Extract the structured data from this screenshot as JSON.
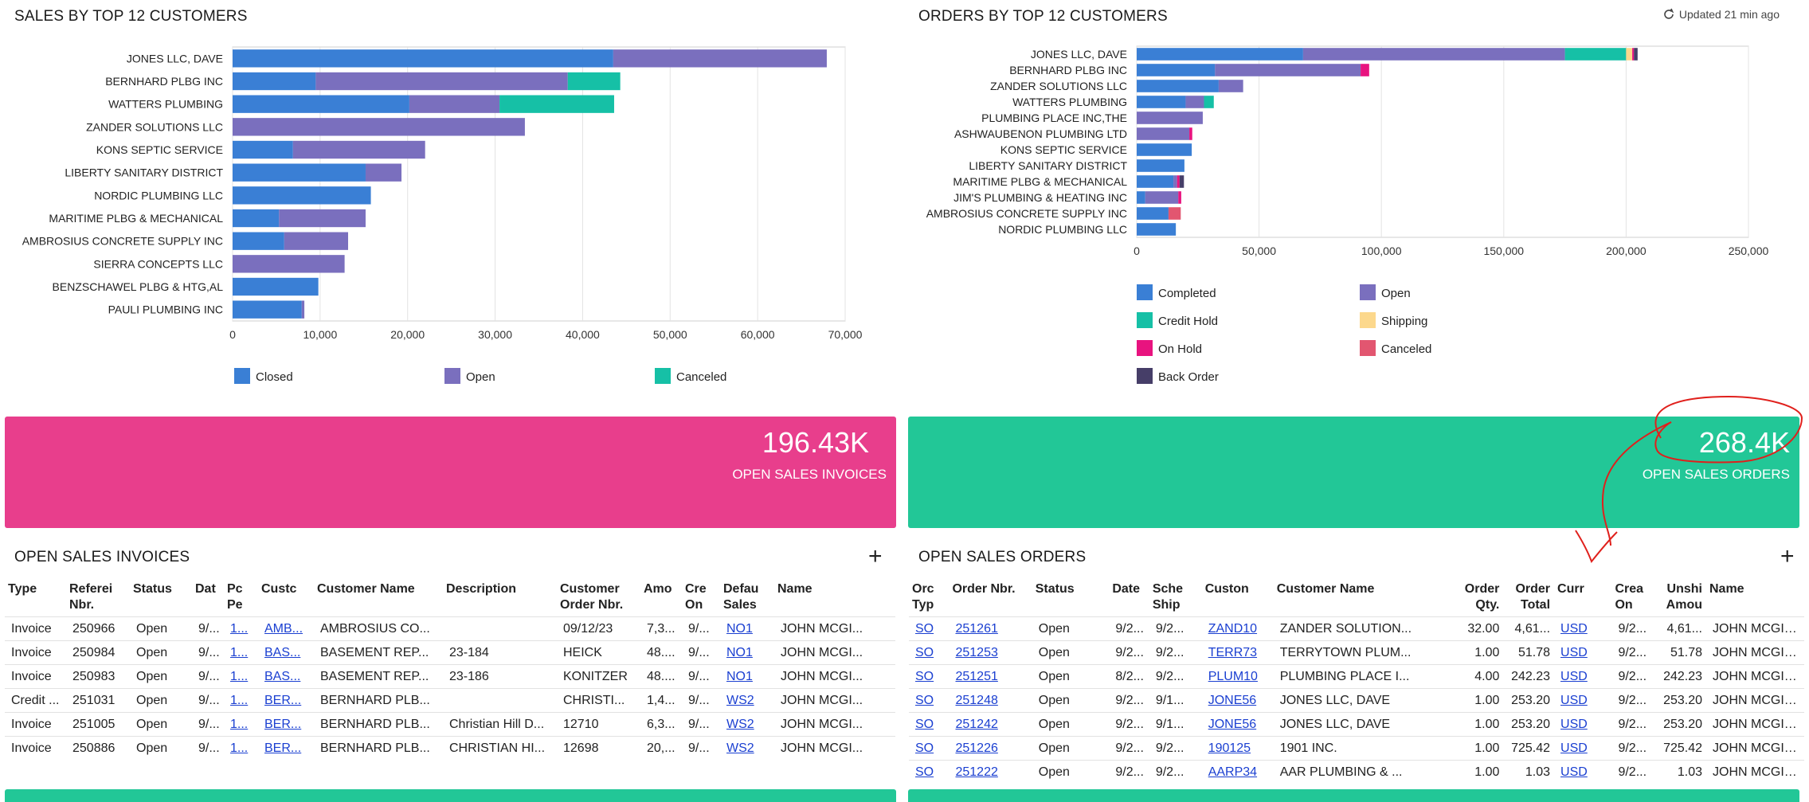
{
  "colors": {
    "closed": "#3a7fd5",
    "open": "#7a6fbe",
    "canceled_teal": "#16c0a6",
    "completed": "#3a7fd5",
    "credit_hold": "#16c0a6",
    "shipping": "#fcd88c",
    "on_hold": "#e8137f",
    "canceled_red": "#e25670",
    "back_order": "#463e68",
    "kpi_pink": "#e83e8c",
    "kpi_green": "#22c797",
    "link": "#1a3fd1",
    "annotation": "#e0201c"
  },
  "sales_chart": {
    "title": "SALES BY TOP 12 CUSTOMERS",
    "chart_data": {
      "type": "bar",
      "orientation": "horizontal",
      "stacked": true,
      "categories": [
        "JONES LLC, DAVE",
        "BERNHARD PLBG INC",
        "WATTERS PLUMBING",
        "ZANDER SOLUTIONS LLC",
        "KONS SEPTIC SERVICE",
        "LIBERTY SANITARY DISTRICT",
        "NORDIC PLUMBING LLC",
        "MARITIME PLBG & MECHANICAL",
        "AMBROSIUS CONCRETE SUPPLY INC",
        "SIERRA CONCEPTS LLC",
        "BENZSCHAWEL PLBG & HTG,AL",
        "PAULI PLUMBING INC"
      ],
      "series": [
        {
          "name": "Closed",
          "color": "#3a7fd5",
          "values": [
            43500,
            9500,
            20200,
            0,
            6900,
            15200,
            15800,
            5300,
            5900,
            0,
            9800,
            7900
          ]
        },
        {
          "name": "Open",
          "color": "#7a6fbe",
          "values": [
            24400,
            28800,
            10300,
            33400,
            15100,
            4100,
            0,
            9900,
            7300,
            12800,
            0,
            300
          ]
        },
        {
          "name": "Canceled",
          "color": "#16c0a6",
          "values": [
            0,
            6000,
            13100,
            0,
            0,
            0,
            0,
            0,
            0,
            0,
            0,
            0
          ]
        }
      ],
      "xlim": [
        0,
        70000
      ],
      "xticks": [
        "0",
        "10,000",
        "20,000",
        "30,000",
        "40,000",
        "50,000",
        "60,000",
        "70,000"
      ],
      "grid": true,
      "legend_position": "bottom"
    }
  },
  "orders_chart": {
    "title": "ORDERS BY TOP 12 CUSTOMERS",
    "updated": "Updated 21 min ago",
    "chart_data": {
      "type": "bar",
      "orientation": "horizontal",
      "stacked": true,
      "categories": [
        "JONES LLC, DAVE",
        "BERNHARD PLBG INC",
        "ZANDER SOLUTIONS LLC",
        "WATTERS PLUMBING",
        "PLUMBING PLACE INC,THE",
        "ASHWAUBENON PLUMBING LTD",
        "KONS SEPTIC SERVICE",
        "LIBERTY SANITARY DISTRICT",
        "MARITIME PLBG & MECHANICAL",
        "JIM'S PLUMBING & HEATING INC",
        "AMBROSIUS CONCRETE SUPPLY INC",
        "NORDIC PLUMBING LLC"
      ],
      "series": [
        {
          "name": "Completed",
          "color": "#3a7fd5",
          "values": [
            68000,
            32000,
            33500,
            20000,
            0,
            0,
            22500,
            19500,
            15000,
            3500,
            13000,
            16000
          ]
        },
        {
          "name": "Open",
          "color": "#7a6fbe",
          "values": [
            107000,
            59500,
            10000,
            7500,
            27000,
            21500,
            0,
            0,
            1500,
            13500,
            0,
            0
          ]
        },
        {
          "name": "Credit Hold",
          "color": "#16c0a6",
          "values": [
            25000,
            0,
            0,
            4000,
            0,
            0,
            0,
            0,
            0,
            0,
            0,
            0
          ]
        },
        {
          "name": "Shipping",
          "color": "#fcd88c",
          "values": [
            2500,
            0,
            0,
            0,
            0,
            0,
            0,
            0,
            0,
            0,
            0,
            0
          ]
        },
        {
          "name": "On Hold",
          "color": "#e8137f",
          "values": [
            700,
            3500,
            0,
            0,
            0,
            1200,
            0,
            0,
            1000,
            1200,
            0,
            0
          ]
        },
        {
          "name": "Canceled",
          "color": "#e25670",
          "values": [
            0,
            0,
            0,
            0,
            0,
            0,
            0,
            0,
            0,
            0,
            5000,
            0
          ]
        },
        {
          "name": "Back Order",
          "color": "#463e68",
          "values": [
            1500,
            0,
            0,
            0,
            0,
            0,
            0,
            0,
            1800,
            0,
            0,
            0
          ]
        }
      ],
      "xlim": [
        0,
        250000
      ],
      "xticks": [
        "0",
        "50,000",
        "100,000",
        "150,000",
        "200,000",
        "250,000"
      ],
      "grid": true,
      "legend_position": "bottom"
    }
  },
  "kpi_invoices": {
    "value": "196.43K",
    "label": "OPEN SALES INVOICES"
  },
  "kpi_orders": {
    "value": "268.4K",
    "label": "OPEN SALES ORDERS"
  },
  "invoices_table": {
    "title": "OPEN SALES INVOICES",
    "add_label": "+",
    "columns": [
      "Type",
      "Referei Nbr.",
      "Status",
      "Dat",
      "Pc Pe",
      "Custc",
      "Customer Name",
      "Description",
      "Customer Order Nbr.",
      "Amo",
      "Cre On",
      "Defau Sales",
      "Name"
    ],
    "rows": [
      [
        "Invoice",
        "250966",
        "Open",
        "9/...",
        "1...",
        "AMB...",
        "AMBROSIUS CO...",
        "",
        "09/12/23",
        "7,3...",
        "9/...",
        "NO1",
        "JOHN MCGI..."
      ],
      [
        "Invoice",
        "250984",
        "Open",
        "9/...",
        "1...",
        "BAS...",
        "BASEMENT REP...",
        "23-184",
        "HEICK",
        "48....",
        "9/...",
        "NO1",
        "JOHN MCGI..."
      ],
      [
        "Invoice",
        "250983",
        "Open",
        "9/...",
        "1...",
        "BAS...",
        "BASEMENT REP...",
        "23-186",
        "KONITZER",
        "48....",
        "9/...",
        "NO1",
        "JOHN MCGI..."
      ],
      [
        "Credit ...",
        "251031",
        "Open",
        "9/...",
        "1...",
        "BER...",
        "BERNHARD PLB...",
        "",
        "CHRISTI...",
        "1,4...",
        "9/...",
        "WS2",
        "JOHN MCGI..."
      ],
      [
        "Invoice",
        "251005",
        "Open",
        "9/...",
        "1...",
        "BER...",
        "BERNHARD PLB...",
        "Christian Hill D...",
        "12710",
        "6,3...",
        "9/...",
        "WS2",
        "JOHN MCGI..."
      ],
      [
        "Invoice",
        "250886",
        "Open",
        "9/...",
        "1...",
        "BER...",
        "BERNHARD PLB...",
        "CHRISTIAN HI...",
        "12698",
        "20,...",
        "9/...",
        "WS2",
        "JOHN MCGI..."
      ]
    ]
  },
  "orders_table": {
    "title": "OPEN SALES ORDERS",
    "add_label": "+",
    "columns": [
      "Orc Typ",
      "Order Nbr.",
      "Status",
      "Date",
      "Sche Ship",
      "Custon",
      "Customer Name",
      "Order Qty.",
      "Order Total",
      "Curr",
      "Crea On",
      "Unshi Amou",
      "Name"
    ],
    "rows": [
      [
        "SO",
        "251261",
        "Open",
        "9/2...",
        "9/2...",
        "ZAND10",
        "ZANDER SOLUTION...",
        "32.00",
        "4,61...",
        "USD",
        "9/2...",
        "4,61...",
        "JOHN MCGINN"
      ],
      [
        "SO",
        "251253",
        "Open",
        "9/2...",
        "9/2...",
        "TERR73",
        "TERRYTOWN PLUM...",
        "1.00",
        "51.78",
        "USD",
        "9/2...",
        "51.78",
        "JOHN MCGINN"
      ],
      [
        "SO",
        "251251",
        "Open",
        "8/2...",
        "9/2...",
        "PLUM10",
        "PLUMBING PLACE I...",
        "4.00",
        "242.23",
        "USD",
        "9/2...",
        "242.23",
        "JOHN MCGINN"
      ],
      [
        "SO",
        "251248",
        "Open",
        "9/2...",
        "9/1...",
        "JONE56",
        "JONES LLC, DAVE",
        "1.00",
        "253.20",
        "USD",
        "9/2...",
        "253.20",
        "JOHN MCGINN"
      ],
      [
        "SO",
        "251242",
        "Open",
        "9/2...",
        "9/1...",
        "JONE56",
        "JONES LLC, DAVE",
        "1.00",
        "253.20",
        "USD",
        "9/2...",
        "253.20",
        "JOHN MCGINN"
      ],
      [
        "SO",
        "251226",
        "Open",
        "9/2...",
        "9/2...",
        "190125",
        "1901 INC.",
        "1.00",
        "725.42",
        "USD",
        "9/2...",
        "725.42",
        "JOHN MCGINN"
      ],
      [
        "SO",
        "251222",
        "Open",
        "9/2...",
        "9/2...",
        "AARP34",
        "AAR PLUMBING & ...",
        "1.00",
        "1.03",
        "USD",
        "9/2...",
        "1.03",
        "JOHN MCGINN"
      ]
    ]
  }
}
